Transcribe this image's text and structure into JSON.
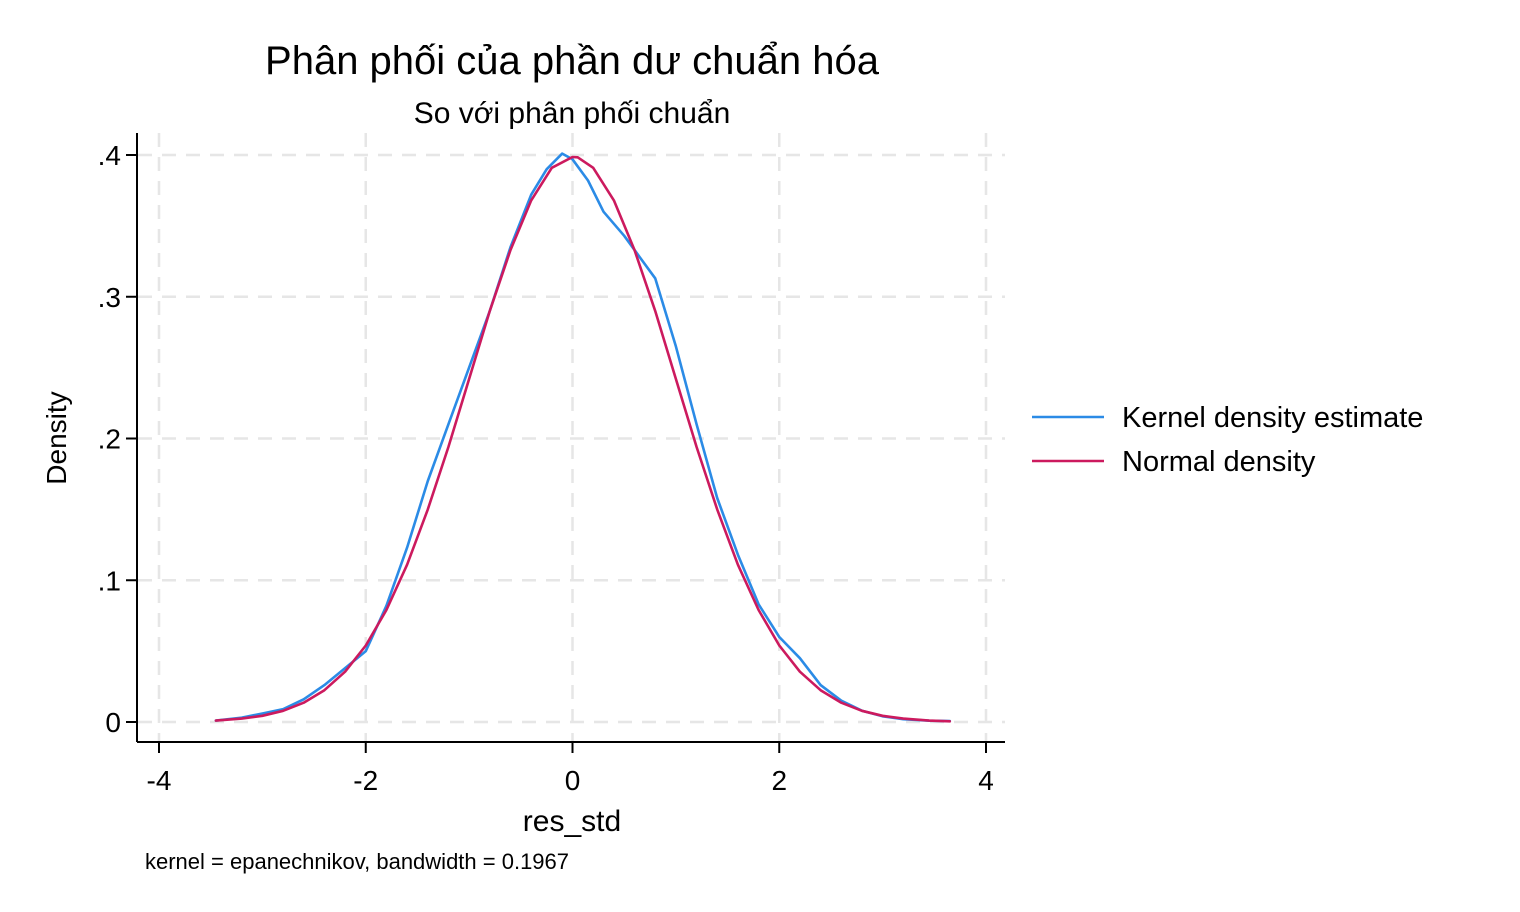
{
  "chart_data": {
    "type": "line",
    "title": "Phân phối của phần dư chuẩn hóa",
    "subtitle": "So với phân phối chuẩn",
    "xlabel": "res_std",
    "ylabel": "Density",
    "note": "kernel = epanechnikov, bandwidth = 0.1967",
    "xlim": [
      -4,
      4
    ],
    "ylim": [
      0,
      0.4
    ],
    "xticks": [
      {
        "value": -4,
        "label": "-4"
      },
      {
        "value": -2,
        "label": "-2"
      },
      {
        "value": 0,
        "label": "0"
      },
      {
        "value": 2,
        "label": "2"
      },
      {
        "value": 4,
        "label": "4"
      }
    ],
    "yticks": [
      {
        "value": 0,
        "label": "0"
      },
      {
        "value": 0.1,
        "label": ".1"
      },
      {
        "value": 0.2,
        "label": ".2"
      },
      {
        "value": 0.3,
        "label": ".3"
      },
      {
        "value": 0.4,
        "label": ".4"
      }
    ],
    "grid": true,
    "legend_position": "right",
    "series": [
      {
        "name": "Kernel density estimate",
        "color": "#2b8be6",
        "x": [
          -3.45,
          -3.2,
          -3.0,
          -2.8,
          -2.6,
          -2.4,
          -2.2,
          -2.0,
          -1.8,
          -1.6,
          -1.4,
          -1.2,
          -1.0,
          -0.8,
          -0.6,
          -0.4,
          -0.25,
          -0.1,
          0.0,
          0.15,
          0.3,
          0.5,
          0.65,
          0.8,
          1.0,
          1.2,
          1.4,
          1.6,
          1.8,
          2.0,
          2.2,
          2.4,
          2.6,
          2.8,
          3.0,
          3.2,
          3.45,
          3.65
        ],
        "y": [
          0.001,
          0.003,
          0.006,
          0.009,
          0.016,
          0.026,
          0.038,
          0.05,
          0.082,
          0.123,
          0.17,
          0.21,
          0.25,
          0.29,
          0.335,
          0.372,
          0.39,
          0.401,
          0.397,
          0.382,
          0.36,
          0.343,
          0.328,
          0.313,
          0.265,
          0.21,
          0.158,
          0.118,
          0.083,
          0.06,
          0.045,
          0.026,
          0.015,
          0.008,
          0.004,
          0.002,
          0.0009,
          0.0006
        ]
      },
      {
        "name": "Normal density",
        "color": "#cc1a5e",
        "x": [
          -3.45,
          -3.2,
          -3.0,
          -2.8,
          -2.6,
          -2.4,
          -2.2,
          -2.0,
          -1.8,
          -1.6,
          -1.4,
          -1.2,
          -1.0,
          -0.8,
          -0.6,
          -0.4,
          -0.2,
          0.0,
          0.05,
          0.2,
          0.4,
          0.6,
          0.8,
          1.0,
          1.2,
          1.4,
          1.6,
          1.8,
          2.0,
          2.2,
          2.4,
          2.6,
          2.8,
          3.0,
          3.2,
          3.45,
          3.65
        ],
        "y": [
          0.001,
          0.0024,
          0.0044,
          0.0079,
          0.0136,
          0.0224,
          0.0355,
          0.054,
          0.079,
          0.111,
          0.15,
          0.194,
          0.242,
          0.29,
          0.333,
          0.368,
          0.391,
          0.3986,
          0.3984,
          0.391,
          0.368,
          0.333,
          0.29,
          0.242,
          0.194,
          0.15,
          0.111,
          0.079,
          0.054,
          0.0355,
          0.0224,
          0.0136,
          0.0079,
          0.0044,
          0.0024,
          0.001,
          0.0005
        ]
      }
    ]
  }
}
